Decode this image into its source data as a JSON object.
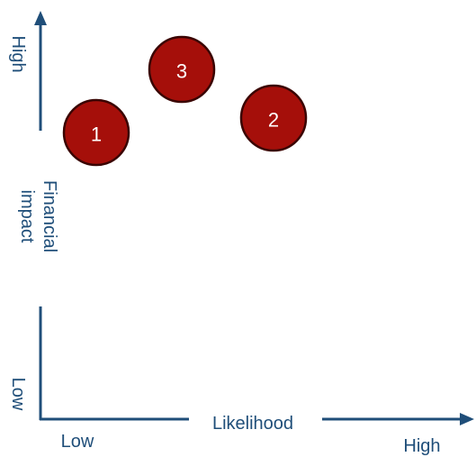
{
  "axes": {
    "y_label_line1": "Financial",
    "y_label_line2": "impact",
    "y_high": "High",
    "y_low": "Low",
    "x_label": "Likelihood",
    "x_low": "Low",
    "x_high": "High"
  },
  "bubbles": [
    {
      "label": "1"
    },
    {
      "label": "3"
    },
    {
      "label": "2"
    }
  ],
  "colors": {
    "axis": "#1f4e79",
    "bubble_fill": "#a50f0a",
    "bubble_stroke": "#3a0503"
  }
}
